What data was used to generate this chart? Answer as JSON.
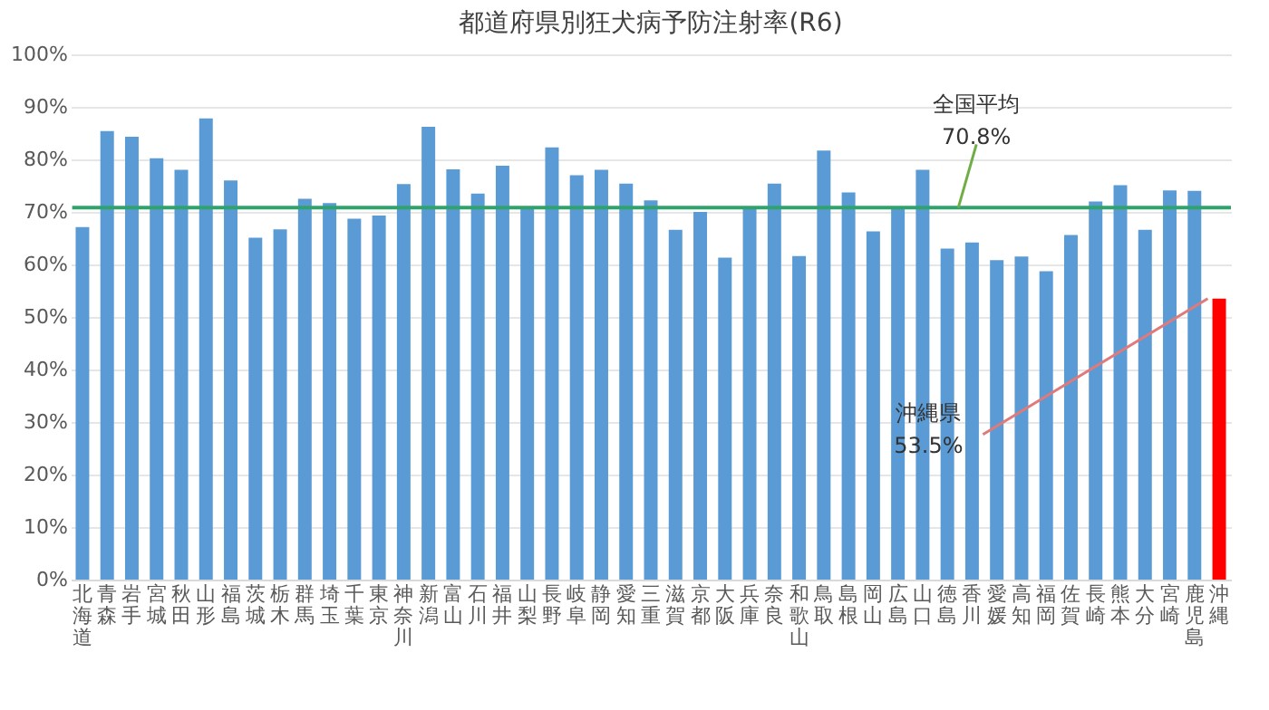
{
  "chart_data": {
    "type": "bar",
    "title": "都道府県別狂犬病予防注射率(R6)",
    "categories": [
      "北海道",
      "青森",
      "岩手",
      "宮城",
      "秋田",
      "山形",
      "福島",
      "茨城",
      "栃木",
      "群馬",
      "埼玉",
      "千葉",
      "東京",
      "神奈川",
      "新潟",
      "富山",
      "石川",
      "福井",
      "山梨",
      "長野",
      "岐阜",
      "静岡",
      "愛知",
      "三重",
      "滋賀",
      "京都",
      "大阪",
      "兵庫",
      "奈良",
      "和歌山",
      "鳥取",
      "島根",
      "岡山",
      "広島",
      "山口",
      "徳島",
      "香川",
      "愛媛",
      "高知",
      "福岡",
      "佐賀",
      "長崎",
      "熊本",
      "大分",
      "宮崎",
      "鹿児島",
      "沖縄"
    ],
    "values": [
      67.1,
      85.4,
      84.3,
      80.2,
      78.0,
      87.8,
      76.0,
      65.1,
      66.7,
      72.5,
      71.7,
      68.7,
      69.3,
      75.3,
      86.2,
      78.1,
      73.5,
      78.8,
      70.8,
      82.3,
      77.0,
      78.0,
      75.4,
      72.2,
      66.6,
      70.0,
      61.3,
      70.8,
      75.4,
      61.6,
      81.7,
      73.7,
      66.3,
      70.8,
      78.0,
      63.0,
      64.2,
      60.8,
      61.5,
      58.7,
      65.6,
      72.0,
      75.1,
      66.6,
      74.1,
      74.0,
      53.5
    ],
    "colors": [
      "#5b9bd5",
      "#5b9bd5",
      "#5b9bd5",
      "#5b9bd5",
      "#5b9bd5",
      "#5b9bd5",
      "#5b9bd5",
      "#5b9bd5",
      "#5b9bd5",
      "#5b9bd5",
      "#5b9bd5",
      "#5b9bd5",
      "#5b9bd5",
      "#5b9bd5",
      "#5b9bd5",
      "#5b9bd5",
      "#5b9bd5",
      "#5b9bd5",
      "#5b9bd5",
      "#5b9bd5",
      "#5b9bd5",
      "#5b9bd5",
      "#5b9bd5",
      "#5b9bd5",
      "#5b9bd5",
      "#5b9bd5",
      "#5b9bd5",
      "#5b9bd5",
      "#5b9bd5",
      "#5b9bd5",
      "#5b9bd5",
      "#5b9bd5",
      "#5b9bd5",
      "#5b9bd5",
      "#5b9bd5",
      "#5b9bd5",
      "#5b9bd5",
      "#5b9bd5",
      "#5b9bd5",
      "#5b9bd5",
      "#5b9bd5",
      "#5b9bd5",
      "#5b9bd5",
      "#5b9bd5",
      "#5b9bd5",
      "#5b9bd5",
      "#ff0000"
    ],
    "ylim": [
      0,
      100
    ],
    "yticks": [
      {
        "value": 0,
        "label": "0%"
      },
      {
        "value": 10,
        "label": "10%"
      },
      {
        "value": 20,
        "label": "20%"
      },
      {
        "value": 30,
        "label": "30%"
      },
      {
        "value": 40,
        "label": "40%"
      },
      {
        "value": 50,
        "label": "50%"
      },
      {
        "value": 60,
        "label": "60%"
      },
      {
        "value": 70,
        "label": "70%"
      },
      {
        "value": 80,
        "label": "80%"
      },
      {
        "value": 90,
        "label": "90%"
      },
      {
        "value": 100,
        "label": "100%"
      }
    ],
    "grid": "y",
    "ref_lines": [
      {
        "axis": "y",
        "value": 70.8,
        "label": "全国平均\n70.8%",
        "color": "#2ea36b"
      }
    ],
    "annotations": [
      {
        "text": "沖縄県\n53.5%",
        "x": "沖縄",
        "y": 53.5
      }
    ]
  }
}
